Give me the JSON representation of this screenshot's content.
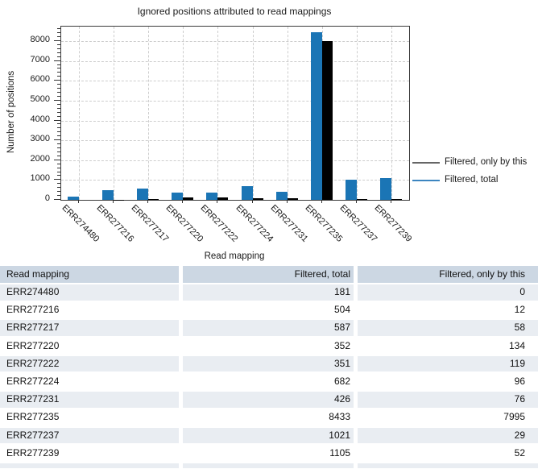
{
  "chart_data": {
    "type": "bar",
    "title": "Ignored positions attributed to read mappings",
    "xlabel": "Read mapping",
    "ylabel": "Number of positions",
    "categories": [
      "ERR274480",
      "ERR277216",
      "ERR277217",
      "ERR277220",
      "ERR277222",
      "ERR277224",
      "ERR277231",
      "ERR277235",
      "ERR277237",
      "ERR277239"
    ],
    "series": [
      {
        "name": "Filtered, total",
        "color": "#1b75b5",
        "values": [
          181,
          504,
          587,
          352,
          351,
          682,
          426,
          8433,
          1021,
          1105
        ]
      },
      {
        "name": "Filtered, only by this",
        "color": "#000000",
        "values": [
          0,
          12,
          58,
          134,
          119,
          96,
          76,
          7995,
          29,
          52
        ]
      }
    ],
    "ylim": [
      0,
      8731
    ],
    "yticks": [
      0,
      1000,
      2000,
      3000,
      4000,
      5000,
      6000,
      7000,
      8000
    ],
    "minor_tick_step": 200,
    "grid": "dashed",
    "legend_position": "right"
  },
  "legend": {
    "items": [
      {
        "label": "Filtered, only by this",
        "line_color": "#666666"
      },
      {
        "label": "Filtered, total",
        "line_color": "#3c85c0"
      }
    ]
  },
  "table": {
    "columns": [
      "Read mapping",
      "Filtered, total",
      "Filtered, only by this"
    ],
    "rows": [
      [
        "ERR274480",
        "181",
        "0"
      ],
      [
        "ERR277216",
        "504",
        "12"
      ],
      [
        "ERR277217",
        "587",
        "58"
      ],
      [
        "ERR277220",
        "352",
        "134"
      ],
      [
        "ERR277222",
        "351",
        "119"
      ],
      [
        "ERR277224",
        "682",
        "96"
      ],
      [
        "ERR277231",
        "426",
        "76"
      ],
      [
        "ERR277235",
        "8433",
        "7995"
      ],
      [
        "ERR277237",
        "1021",
        "29"
      ],
      [
        "ERR277239",
        "1105",
        "52"
      ]
    ]
  },
  "colors": {
    "bar_blue": "#1b75b5",
    "bar_black": "#000000",
    "header_bg": "#ccd7e3",
    "stripe_bg": "#e9edf2",
    "grid": "#cdcdcd"
  }
}
